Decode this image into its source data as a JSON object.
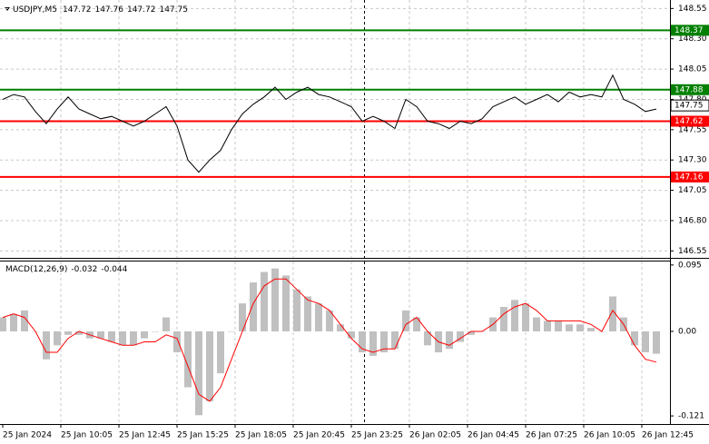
{
  "chart_data": [
    {
      "type": "price",
      "title": "USDJPY,M5",
      "ohlc": [
        147.72,
        147.76,
        147.72,
        147.75
      ],
      "color": "#000000",
      "x_labels": [
        "25 Jan 2024",
        "25 Jan 10:05",
        "25 Jan 12:45",
        "25 Jan 15:25",
        "25 Jan 18:05",
        "25 Jan 20:45",
        "25 Jan 23:25",
        "26 Jan 02:05",
        "26 Jan 04:45",
        "26 Jan 07:25",
        "26 Jan 10:05",
        "26 Jan 12:45"
      ],
      "values": [
        147.8,
        147.84,
        147.82,
        147.7,
        147.6,
        147.72,
        147.82,
        147.72,
        147.68,
        147.64,
        147.66,
        147.62,
        147.58,
        147.62,
        147.68,
        147.74,
        147.58,
        147.3,
        147.2,
        147.3,
        147.38,
        147.55,
        147.68,
        147.76,
        147.82,
        147.9,
        147.8,
        147.86,
        147.9,
        147.84,
        147.82,
        147.78,
        147.74,
        147.62,
        147.66,
        147.62,
        147.56,
        147.8,
        147.74,
        147.62,
        147.6,
        147.56,
        147.62,
        147.6,
        147.64,
        147.74,
        147.78,
        147.82,
        147.76,
        147.8,
        147.84,
        147.78,
        147.86,
        147.82,
        147.84,
        147.82,
        148.0,
        147.8,
        147.76,
        147.7,
        147.72
      ],
      "ylim": [
        146.5,
        148.62
      ],
      "yticks": [
        148.55,
        {
          "value": 148.3,
          "label": "148.30"
        },
        148.05,
        {
          "value": 147.8,
          "label": "147.80"
        },
        147.55,
        {
          "value": 147.3,
          "label": "147.30"
        },
        147.05,
        {
          "value": 146.8,
          "label": "146.80"
        },
        146.55
      ],
      "levels": [
        {
          "value": 148.37,
          "color": "#008000"
        },
        {
          "value": 147.88,
          "color": "#008000"
        },
        {
          "value": 147.62,
          "color": "#ff0000"
        },
        {
          "value": 147.16,
          "color": "#ff0000"
        }
      ],
      "current_price": 147.75,
      "grid": true
    },
    {
      "type": "macd",
      "title": "MACD(12,26,9)",
      "indicator_values": [
        -0.032,
        -0.044
      ],
      "histogram": {
        "color": "#c0c0c0",
        "values": [
          0.02,
          0.025,
          0.03,
          0.0,
          -0.04,
          -0.02,
          -0.005,
          -0.005,
          -0.01,
          -0.01,
          -0.015,
          -0.02,
          -0.02,
          -0.01,
          0.0,
          0.02,
          -0.03,
          -0.08,
          -0.12,
          -0.1,
          -0.06,
          0.0,
          0.04,
          0.07,
          0.085,
          0.09,
          0.08,
          0.06,
          0.05,
          0.04,
          0.03,
          0.01,
          -0.01,
          -0.03,
          -0.035,
          -0.03,
          -0.025,
          0.03,
          0.02,
          -0.02,
          -0.03,
          -0.025,
          -0.015,
          -0.005,
          0.0,
          0.02,
          0.035,
          0.045,
          0.04,
          0.02,
          0.015,
          0.015,
          0.01,
          0.01,
          0.005,
          0.0,
          0.05,
          0.02,
          -0.02,
          -0.03,
          -0.032
        ]
      },
      "signal": {
        "color": "#ff0000",
        "values": [
          0.02,
          0.025,
          0.02,
          0.0,
          -0.03,
          -0.03,
          -0.01,
          0.0,
          -0.005,
          -0.01,
          -0.015,
          -0.02,
          -0.02,
          -0.015,
          -0.015,
          -0.005,
          -0.01,
          -0.05,
          -0.09,
          -0.1,
          -0.08,
          -0.04,
          0.0,
          0.04,
          0.065,
          0.075,
          0.075,
          0.06,
          0.045,
          0.04,
          0.03,
          0.01,
          -0.01,
          -0.025,
          -0.03,
          -0.025,
          -0.025,
          0.01,
          0.02,
          0.0,
          -0.015,
          -0.02,
          -0.01,
          0.0,
          0.0,
          0.01,
          0.025,
          0.035,
          0.04,
          0.03,
          0.015,
          0.015,
          0.015,
          0.015,
          0.01,
          0.0,
          0.03,
          0.01,
          -0.02,
          -0.04,
          -0.044
        ]
      },
      "ylim": [
        -0.13,
        0.1
      ],
      "yticks": [
        0.095,
        {
          "value": 0,
          "label": "0.00"
        },
        -0.121
      ]
    }
  ]
}
